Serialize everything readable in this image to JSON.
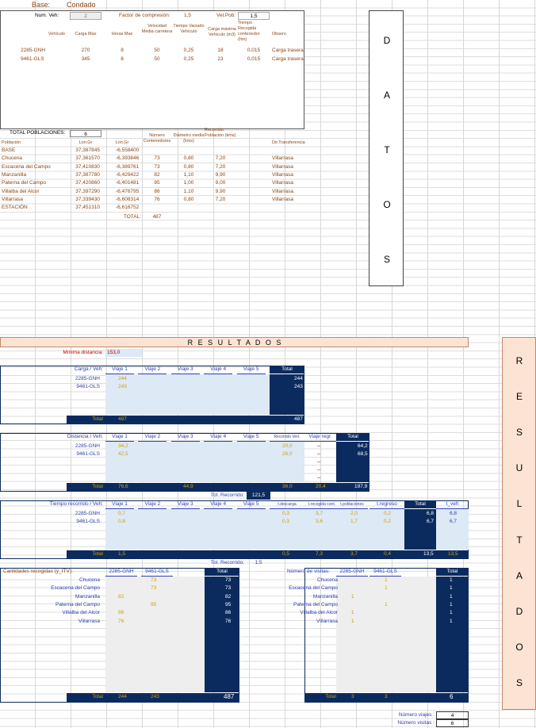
{
  "base_label": "Base:",
  "base_value": "Condado",
  "top": {
    "num_veh_label": "Num. Veh:",
    "num_veh_value": "2",
    "factor_label": "Factor de compresión:",
    "factor_value": "1,5",
    "velpob_label": "Vel.Pob:",
    "velpob_value": "1,5",
    "headers": [
      "Vehículo",
      "Carga Max",
      "Horas Max",
      "Velocidad Media carretera",
      "Tiempo Vaciado Vehículo",
      "Carga máxima Vehículo (m3)",
      "Tiempo Recogida contenedor (hm)",
      "Observ."
    ],
    "rows": [
      [
        "2285-GNH",
        "270",
        "8",
        "50",
        "0,25",
        "18",
        "0,015",
        "Carga trasera"
      ],
      [
        "9461-GLS",
        "345",
        "8",
        "50",
        "0,25",
        "23",
        "0,015",
        "Carga trasera"
      ]
    ]
  },
  "pob": {
    "total_label": "TOTAL POBLACIONES:",
    "total_value": "6",
    "headers": [
      "Población",
      "Lon.Gr",
      "Lon.Gr",
      "Número Contenedores",
      "Diámetro media (kms)",
      "Recorrido Población (kms)",
      "",
      "Dir.Transferencia"
    ],
    "rows": [
      [
        "BASE",
        "37,387845",
        "-6,558400",
        "",
        "",
        "",
        "",
        ""
      ],
      [
        "Chucena",
        "37,361570",
        "-6,393846",
        "73",
        "0,80",
        "7,20",
        "",
        "Villarrasa"
      ],
      [
        "Escacena del Campo",
        "37,410830",
        "-6,389761",
        "73",
        "0,80",
        "7,20",
        "",
        "Villarrasa"
      ],
      [
        "Manzanilla",
        "37,387780",
        "-6,429422",
        "82",
        "1,10",
        "9,90",
        "",
        "Villarrasa"
      ],
      [
        "Paterna del Campo",
        "37,420860",
        "-6,401481",
        "95",
        "1,00",
        "9,00",
        "",
        "Villarrasa"
      ],
      [
        "Villalba del Alcor",
        "37,397290",
        "-6,476795",
        "86",
        "1,10",
        "9,90",
        "",
        "Villarrasa"
      ],
      [
        "Villarrasa",
        "37,339430",
        "-6,608314",
        "76",
        "0,80",
        "7,20",
        "",
        "Villarrasa"
      ],
      [
        "ESTACIÓN",
        "37,451310",
        "-6,616752",
        "",
        "",
        "",
        "",
        ""
      ]
    ],
    "total_cont_label": "TOTAL:",
    "total_cont_value": "487"
  },
  "datos_letters": [
    "D",
    "A",
    "T",
    "O",
    "S"
  ],
  "resultados_title": "R E S U L T A D O S",
  "resultados_letters": [
    "R",
    "E",
    "S",
    "U",
    "L",
    "T",
    "A",
    "D",
    "O",
    "S"
  ],
  "min_dist_label": "Mínima distancia:",
  "min_dist_value": "153,0",
  "carga": {
    "label": "Carga / Veh:",
    "viajes": [
      "Viaje 1",
      "Viaje 2",
      "Viaje 3",
      "Viaje 4",
      "Viaje 5"
    ],
    "total_label": "Total",
    "rows": [
      [
        "2285-GNH",
        "244",
        "244"
      ],
      [
        "9461-GLS",
        "243",
        "243"
      ]
    ],
    "sum_label": "Total",
    "sum_v1": "487",
    "sum_total": "487"
  },
  "dist": {
    "label": "Distancia / Veh:",
    "viajes": [
      "Viaje 1",
      "Viaje 2",
      "Viaje 3",
      "Viaje 4",
      "Viaje 5"
    ],
    "extra": [
      "Recorrido Vert.",
      "Viaje regr."
    ],
    "total_label": "Total",
    "rows": [
      [
        "2285-GNH",
        "34,2",
        "20,0",
        "--",
        "64,2"
      ],
      [
        "9461-GLS",
        "42,5",
        "26,0",
        "--",
        "68,5"
      ]
    ],
    "dash_rows": [
      "--",
      "--",
      "--"
    ],
    "sum_label": "Total",
    "sum_v1": "76,6",
    "sum_v3": "44,9",
    "sum_rec": "36,0",
    "sum_regr": "20,4",
    "sum_total": "197,9",
    "tot_rec_label": "Tot. Recorrido:",
    "tot_rec_value": "121,5"
  },
  "tiempo": {
    "label": "Tiempo recorrido / Veh:",
    "viajes": [
      "Viaje 1",
      "Viaje 2",
      "Viaje 3",
      "Viaje 4",
      "Viaje 5"
    ],
    "extra": [
      "t.descarga",
      "t.recogida cont.",
      "t.poblaciones",
      "t.regreso"
    ],
    "total_label": "Total",
    "tveh_label": "t_veh",
    "rows": [
      [
        "2285-GNH",
        "0,7",
        "0,3",
        "3,7",
        "2,0",
        "0,2",
        "6,8",
        "6,8"
      ],
      [
        "9461-GLS",
        "0,8",
        "0,3",
        "3,6",
        "1,7",
        "0,2",
        "6,7",
        "6,7"
      ]
    ],
    "sum_label": "Total",
    "sum_v1": "1,5",
    "sum_e1": "0,5",
    "sum_e2": "7,3",
    "sum_e3": "3,7",
    "sum_e4": "0,4",
    "sum_total": "13,5",
    "sum_tveh": "13,5",
    "tot_rec_label": "Tot. Recorrido:",
    "tot_rec_value": "1,5"
  },
  "cant": {
    "label": "Cantidades recogidas (y_ITV):",
    "cols": [
      "2285-GNH",
      "9461-GLS"
    ],
    "total_label": "Total",
    "rows": [
      [
        "Chucena",
        "",
        "73",
        "73"
      ],
      [
        "Escacena del Campo",
        "",
        "73",
        "73"
      ],
      [
        "Manzanilla",
        "82",
        "",
        "82"
      ],
      [
        "Paterna del Campo",
        "",
        "95",
        "95"
      ],
      [
        "Villalba del Alcor",
        "86",
        "",
        "86"
      ],
      [
        "Villarrasa",
        "76",
        "",
        "76"
      ]
    ],
    "sum_label": "Total",
    "sum": [
      "244",
      "243",
      "487"
    ]
  },
  "visitas": {
    "label": "Número de visitas:",
    "cols": [
      "2285-GNH",
      "9461-GLS"
    ],
    "total_label": "Total",
    "rows": [
      [
        "Chucena",
        "",
        "1",
        "1"
      ],
      [
        "Escacena del Campo",
        "",
        "1",
        "1"
      ],
      [
        "Manzanilla",
        "1",
        "",
        "1"
      ],
      [
        "Paterna del Campo",
        "",
        "1",
        "1"
      ],
      [
        "Villalba del Alcor",
        "1",
        "",
        "1"
      ],
      [
        "Villarrasa",
        "1",
        "",
        "1"
      ]
    ],
    "sum_label": "Total",
    "sum": [
      "3",
      "3",
      "6"
    ]
  },
  "footer": {
    "viajes_label": "Número viajes :",
    "viajes_value": "4",
    "visitas_label": "Número visitas :",
    "visitas_value": "6"
  }
}
